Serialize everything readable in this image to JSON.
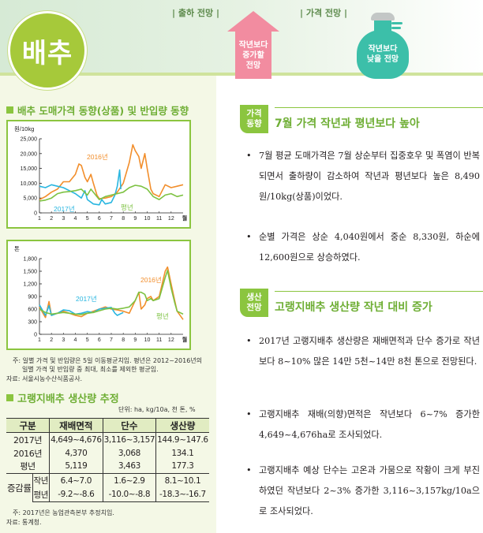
{
  "header": {
    "title": "배추",
    "shipment_label": "| 출하 전망 |",
    "price_label": "| 가격 전망 |",
    "shipment_outlook": [
      "작년보다",
      "증가할",
      "전망"
    ],
    "price_outlook": [
      "작년보다",
      "낮을 전망"
    ],
    "colors": {
      "title_circle": "#a6c93a",
      "arrow": "#f28ca0",
      "bag": "#3cbfa9",
      "accent": "#8bc53f"
    }
  },
  "left": {
    "chart_section_title": "배추 도매가격 동향(상품) 및 반입량 동향",
    "chart1_unit": "원/10kg",
    "chart2_unit": "톤",
    "month_label": "월",
    "note1_line1": "주: 일별 가격 및 반입량은 5일 이동평균치임. 평년은 2012~2016년의",
    "note1_line2": "일별 가격 및 반입량 중 최대, 최소를 제외한 평균임.",
    "source1": "자료: 서울시농수산식품공사.",
    "table_section_title": "고랭지배추 생산량 추정",
    "table_unit": "단위: ha, kg/10a, 천 톤, %",
    "table": {
      "headers": [
        "구분",
        "재배면적",
        "단수",
        "생산량"
      ],
      "rows": [
        {
          "label": "2017년",
          "values": [
            "4,649~4,676",
            "3,116~3,157",
            "144.9~147.6"
          ]
        },
        {
          "label": "2016년",
          "values": [
            "4,370",
            "3,068",
            "134.1"
          ]
        },
        {
          "label": "평년",
          "values": [
            "5,119",
            "3,463",
            "177.3"
          ]
        }
      ],
      "change_label": "증감률",
      "change_rows": [
        {
          "label": "작년",
          "values": [
            "6.4~7.0",
            "1.6~2.9",
            "8.1~10.1"
          ]
        },
        {
          "label": "평년",
          "values": [
            "-9.2~-8.6",
            "-10.0~-8.8",
            "-18.3~-16.7"
          ]
        }
      ]
    },
    "note2": "주: 2017년은 농업관측본부 추정치임.",
    "source2": "자료: 통계청."
  },
  "right": {
    "section1": {
      "badge": [
        "가격",
        "동향"
      ],
      "heading": "7월 가격 작년과 평년보다 높아",
      "bullets": [
        "7월 평균 도매가격은 7월 상순부터 집중호우 및 폭염이 반복되면서 출하량이 감소하여 작년과 평년보다 높은 8,490원/10kg(상품)이었다.",
        "순별 가격은 상순 4,040원에서 중순 8,330원, 하순에 12,600원으로 상승하였다."
      ]
    },
    "section2": {
      "badge": [
        "생산",
        "전망"
      ],
      "heading": "고랭지배추 생산량 작년 대비 증가",
      "bullets": [
        "2017년 고랭지배추 생산량은 재배면적과 단수 증가로 작년보다 8~10% 많은 14만 5천~14만 8천 톤으로 전망된다.",
        "고랭지배추 재배(의향)면적은 작년보다 6~7% 증가한 4,649~4,676ha로 조사되었다.",
        "고랭지배추 예상 단수는 고온과 가뭄으로 작황이 크게 부진하였던 작년보다 2~3% 증가한 3,116~3,157kg/10a으로 조사되었다."
      ]
    },
    "bullet_char": "•"
  },
  "chart_data": [
    {
      "type": "line",
      "title": "배추 도매가격 동향(상품)",
      "ylabel": "원/10kg",
      "xlabel": "월",
      "ylim": [
        0,
        25000
      ],
      "yticks": [
        "0",
        "5,000",
        "10,000",
        "15,000",
        "20,000",
        "25,000"
      ],
      "x": [
        1,
        2,
        3,
        4,
        5,
        6,
        7,
        8,
        9,
        10,
        11,
        12
      ],
      "legend_position": "inline labels",
      "series": [
        {
          "name": "2016년",
          "color": "#f28e2b",
          "x": [
            1,
            1.5,
            2,
            2.5,
            3,
            3.5,
            4,
            4.3,
            4.5,
            4.8,
            5,
            5.3,
            5.5,
            5.8,
            6,
            6.5,
            7,
            7.5,
            8,
            8.5,
            8.8,
            9,
            9.3,
            9.5,
            9.8,
            10,
            10.3,
            10.5,
            11,
            11.5,
            12,
            12.5,
            13
          ],
          "values": [
            4500,
            5500,
            7000,
            8000,
            10500,
            10500,
            13000,
            16500,
            16000,
            12000,
            10500,
            13000,
            10000,
            6000,
            4800,
            5000,
            5500,
            7000,
            10000,
            17000,
            23000,
            21000,
            19000,
            15000,
            20000,
            15000,
            8000,
            6500,
            5500,
            9500,
            8500,
            9000,
            9500
          ]
        },
        {
          "name": "2017년",
          "color": "#29b6e0",
          "x": [
            1,
            1.5,
            2,
            2.5,
            3,
            3.5,
            4,
            4.5,
            4.8,
            5,
            5.5,
            6,
            6.2,
            6.5,
            7,
            7.3,
            7.5,
            7.7,
            7.8
          ],
          "values": [
            9000,
            8500,
            9500,
            9000,
            8500,
            7500,
            6500,
            5000,
            7500,
            4500,
            3000,
            2700,
            4500,
            3000,
            3500,
            6000,
            9000,
            14500,
            8000
          ]
        },
        {
          "name": "평년",
          "color": "#7dc242",
          "x": [
            1,
            1.5,
            2,
            2.5,
            3,
            3.5,
            4,
            4.5,
            5,
            5.3,
            5.5,
            6,
            6.5,
            7,
            7.5,
            8,
            8.5,
            9,
            9.5,
            10,
            10.5,
            11,
            11.5,
            12,
            12.5,
            13
          ],
          "values": [
            4000,
            4300,
            5000,
            6500,
            7000,
            7200,
            7500,
            8000,
            6000,
            8000,
            7000,
            4500,
            5500,
            6000,
            6500,
            7000,
            8500,
            9300,
            9000,
            8000,
            5500,
            4500,
            6000,
            6500,
            5500,
            6000
          ]
        }
      ]
    },
    {
      "type": "line",
      "title": "배추 반입량 동향",
      "ylabel": "톤",
      "xlabel": "월",
      "ylim": [
        0,
        1800
      ],
      "yticks": [
        "0",
        "300",
        "600",
        "900",
        "1,200",
        "1,500",
        "1,800"
      ],
      "x": [
        1,
        2,
        3,
        4,
        5,
        6,
        7,
        8,
        9,
        10,
        11,
        12
      ],
      "legend_position": "inline labels",
      "series": [
        {
          "name": "2016년",
          "color": "#f28e2b",
          "x": [
            1,
            1.5,
            1.8,
            2,
            2.5,
            3,
            3.5,
            4,
            4.5,
            5,
            5.5,
            6,
            6.5,
            7,
            7.5,
            8,
            8.5,
            9,
            9.3,
            9.5,
            9.8,
            10,
            10.3,
            10.5,
            11,
            11.5,
            11.7,
            12,
            12.3,
            12.5,
            13
          ],
          "values": [
            650,
            400,
            780,
            450,
            500,
            550,
            500,
            450,
            420,
            500,
            550,
            600,
            650,
            600,
            580,
            550,
            500,
            800,
            1000,
            600,
            700,
            850,
            900,
            800,
            900,
            1500,
            1600,
            1200,
            800,
            550,
            350
          ]
        },
        {
          "name": "2017년",
          "color": "#29b6e0",
          "x": [
            1,
            1.3,
            1.5,
            1.8,
            2,
            2.5,
            3,
            3.5,
            4,
            4.5,
            5,
            5.5,
            6,
            6.5,
            7,
            7.3,
            7.5,
            8
          ],
          "values": [
            700,
            550,
            450,
            680,
            450,
            500,
            580,
            560,
            480,
            500,
            540,
            520,
            600,
            620,
            640,
            500,
            450,
            520
          ]
        },
        {
          "name": "평년",
          "color": "#7dc242",
          "x": [
            1,
            1.5,
            2,
            2.5,
            3,
            3.5,
            4,
            4.5,
            5,
            5.5,
            6,
            6.5,
            7,
            7.5,
            8,
            8.5,
            9,
            9.3,
            9.5,
            9.8,
            10,
            10.3,
            10.5,
            11,
            11.5,
            11.7,
            12,
            12.3,
            12.5,
            13
          ],
          "values": [
            600,
            520,
            480,
            500,
            520,
            500,
            480,
            470,
            500,
            520,
            560,
            600,
            620,
            600,
            620,
            650,
            800,
            1000,
            1000,
            950,
            800,
            850,
            800,
            850,
            1350,
            1520,
            1100,
            750,
            550,
            480
          ]
        }
      ]
    }
  ]
}
